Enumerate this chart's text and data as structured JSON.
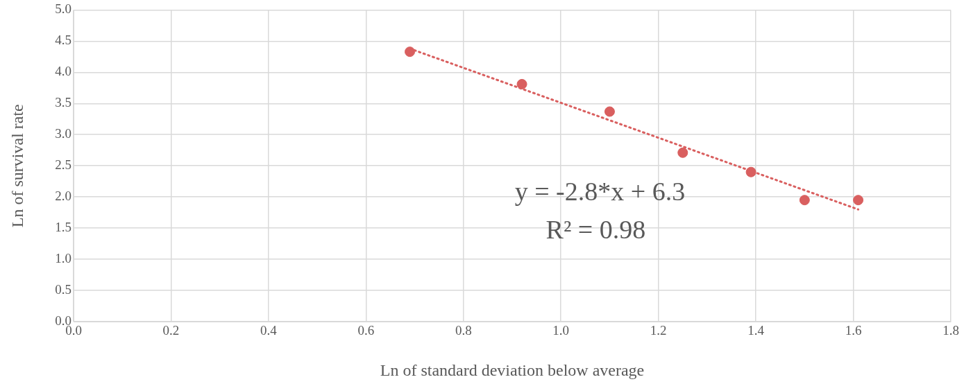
{
  "chart_data": {
    "type": "scatter",
    "xlabel": "Ln of standard deviation below average",
    "ylabel": "Ln of survival rate",
    "xlim": [
      0,
      1.8
    ],
    "xticks": [
      {
        "value": 0,
        "label": "0.0"
      },
      {
        "value": 0.2,
        "label": "0.2"
      },
      {
        "value": 0.4,
        "label": "0.4"
      },
      {
        "value": 0.6,
        "label": "0.6"
      },
      {
        "value": 0.8,
        "label": "0.8"
      },
      {
        "value": 1,
        "label": "1.0"
      },
      {
        "value": 1.2,
        "label": "1.2"
      },
      {
        "value": 1.4,
        "label": "1.4"
      },
      {
        "value": 1.6,
        "label": "1.6"
      },
      {
        "value": 1.8,
        "label": "1.8"
      }
    ],
    "ylim": [
      0,
      5
    ],
    "yticks": [
      {
        "value": 0,
        "label": "0.0"
      },
      {
        "value": 0.5,
        "label": "0.5"
      },
      {
        "value": 1,
        "label": "1.0"
      },
      {
        "value": 1.5,
        "label": "1.5"
      },
      {
        "value": 2,
        "label": "2.0"
      },
      {
        "value": 2.5,
        "label": "2.5"
      },
      {
        "value": 3,
        "label": "3.0"
      },
      {
        "value": 3.5,
        "label": "3.5"
      },
      {
        "value": 4,
        "label": "4.0"
      },
      {
        "value": 4.5,
        "label": "4.5"
      },
      {
        "value": 5,
        "label": "5.0"
      }
    ],
    "grid": true,
    "legend": false,
    "marker": "circle",
    "series": [
      {
        "type": "scatter",
        "color": "#d95f5f",
        "x": [
          0.69,
          0.92,
          1.1,
          1.25,
          1.39,
          1.5,
          1.61
        ],
        "values": [
          4.33,
          3.81,
          3.37,
          2.71,
          2.4,
          1.95,
          1.95
        ]
      },
      {
        "type": "line",
        "color": "#d95f5f",
        "marker": "none",
        "line_style": "dotted",
        "x": [
          0.69,
          1.61
        ],
        "values": [
          4.38,
          1.8
        ]
      }
    ],
    "annotations": [
      "y = -2.8*x + 6.3",
      "R² = 0.98"
    ]
  }
}
